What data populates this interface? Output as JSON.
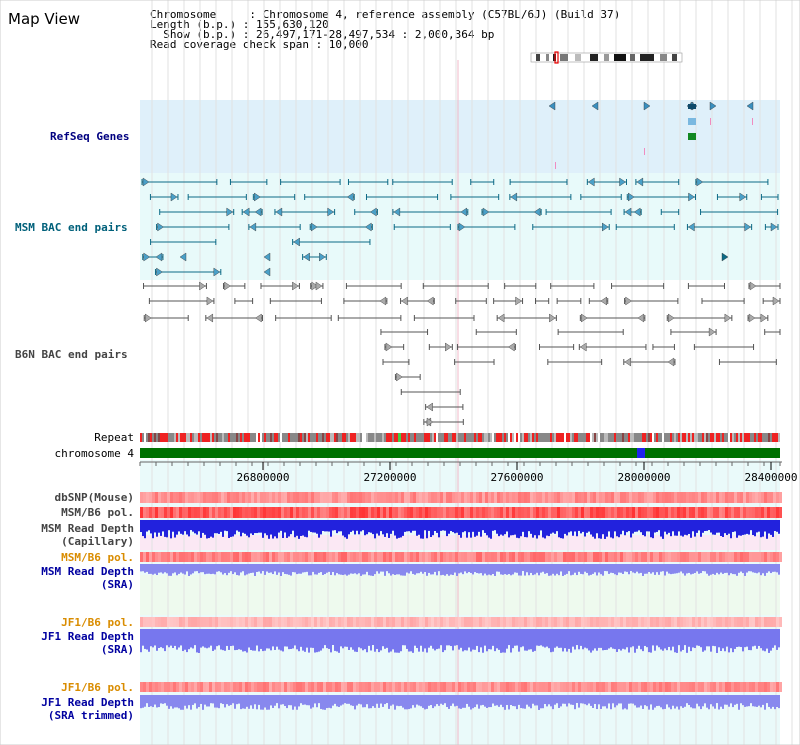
{
  "title": "Map View",
  "info": {
    "line1": "Chromosome     : Chromosome 4, reference assembly (C57BL/6J) (Build 37)",
    "line2": "Length (b.p.) : 155,630,120",
    "line3": "  Show (b.p.) : 26,497,171-28,497,534 : 2,000,364 bp",
    "line4": "Read coverage check span : 10,000"
  },
  "tracks": {
    "refseq": "RefSeq Genes",
    "msm_bac": "MSM BAC end pairs",
    "b6n_bac": "B6N BAC end pairs",
    "repeat": "Repeat",
    "chromosome": "chromosome 4",
    "dbsnp": "dbSNP(Mouse)",
    "msm_b6_pol": "MSM/B6 pol.",
    "msm_read_depth_cap_1": "MSM Read Depth",
    "msm_read_depth_cap_2": "(Capillary)",
    "msm_b6_pol_2": "MSM/B6 pol.",
    "msm_read_depth_sra_1": "MSM Read Depth",
    "msm_read_depth_sra_2": "(SRA)",
    "jf1_b6_pol": "JF1/B6 pol.",
    "jf1_read_depth_1": "JF1 Read Depth",
    "jf1_read_depth_2": "(SRA)",
    "jf1_b6_pol_2": "JF1/B6 pol.",
    "jf1_read_depth_trim_1": "JF1 Read Depth",
    "jf1_read_depth_trim_2": "(SRA trimmed)"
  },
  "axis": {
    "ticks": [
      "26800000",
      "27200000",
      "27600000",
      "28000000",
      "28400000"
    ]
  },
  "colors": {
    "refseq_bg": "#dff0fa",
    "msm_bac_bg": "#e8fafa",
    "read_depth_bg": "#eefaee",
    "capillary_bg": "#fbe8f4",
    "grid": "#e2e2e2",
    "chromosome_bar": "#007000",
    "depth_blue": "#2222dd",
    "depth_light": "#7777ee"
  }
}
